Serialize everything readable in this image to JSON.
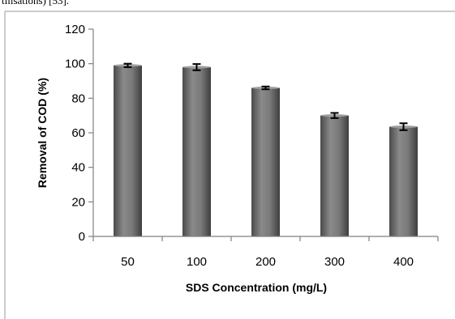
{
  "page_text": "tilisations) [53].",
  "chart_data": {
    "type": "bar",
    "categories": [
      "50",
      "100",
      "200",
      "300",
      "400"
    ],
    "values": [
      99,
      98,
      86,
      70,
      63.5
    ],
    "errors": [
      1.0,
      1.8,
      0.8,
      1.5,
      2.0
    ],
    "xlabel": "SDS Concentration (mg/L)",
    "ylabel": "Removal of COD (%)",
    "ylim": [
      0,
      120
    ],
    "yticks": [
      0,
      20,
      40,
      60,
      80,
      100,
      120
    ],
    "grid": false,
    "bar_color": "#6e6e6e"
  }
}
